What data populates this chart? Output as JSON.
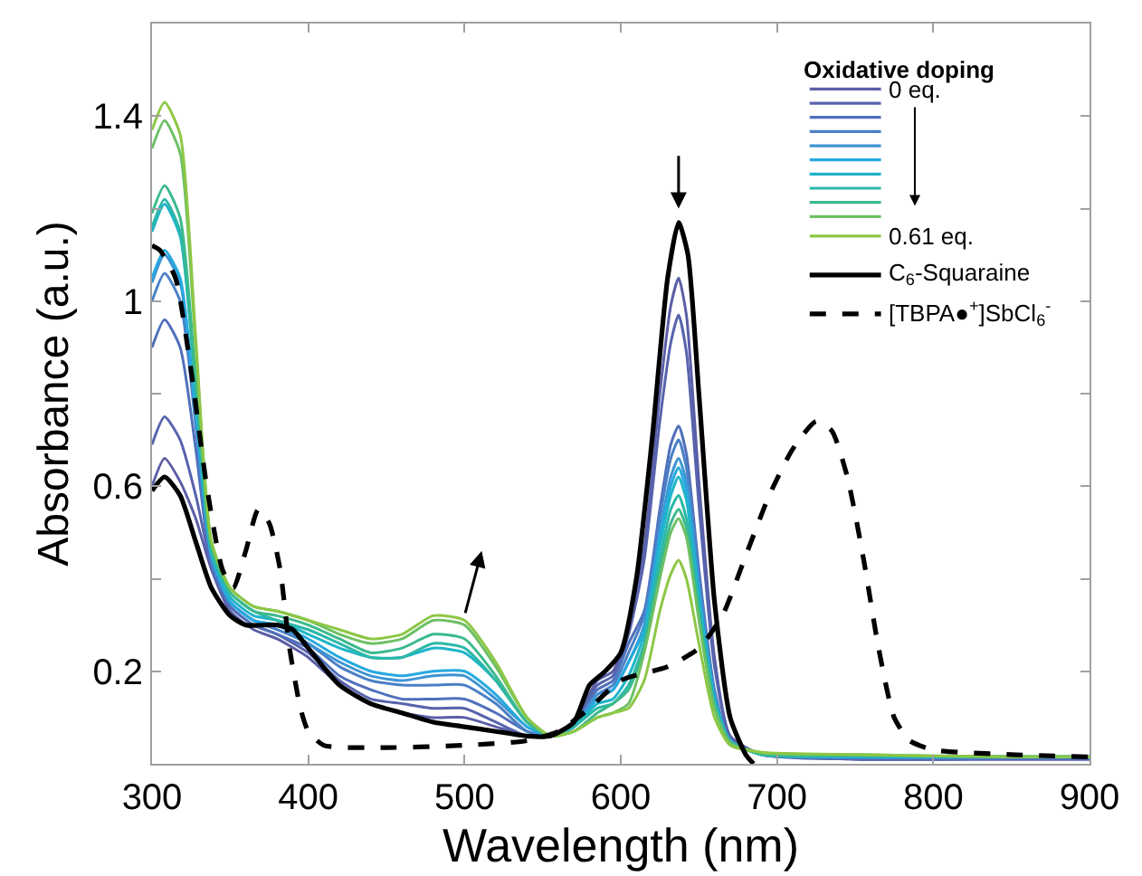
{
  "chart_data": {
    "type": "line",
    "xlabel": "Wavelength (nm)",
    "ylabel": "Absorbance (a.u.)",
    "legend_title": "Oxidative doping",
    "legend": "top right",
    "xlim": [
      300,
      900
    ],
    "xticks": [
      300,
      400,
      500,
      600,
      700,
      800,
      900
    ],
    "ylim": [
      0,
      1.6
    ],
    "yticks": [
      0.2,
      {
        "value": 0.4,
        "label": null
      },
      0.6,
      {
        "value": 0.8,
        "label": null
      },
      1,
      {
        "value": 1.2,
        "label": null
      },
      1.4
    ],
    "x": [
      300,
      308,
      318,
      328,
      338,
      350,
      365,
      380,
      400,
      420,
      440,
      460,
      480,
      500,
      520,
      540,
      555,
      570,
      585,
      595,
      605,
      615,
      625,
      632,
      637,
      642,
      650,
      660,
      670,
      690,
      750,
      850,
      900
    ],
    "series": [
      {
        "name": "0 eq.",
        "color": "#5b5ea6",
        "values": [
          0.6,
          0.66,
          0.61,
          0.53,
          0.42,
          0.33,
          0.29,
          0.27,
          0.23,
          0.17,
          0.13,
          0.11,
          0.1,
          0.1,
          0.08,
          0.06,
          0.06,
          0.09,
          0.18,
          0.2,
          0.3,
          0.47,
          0.8,
          0.99,
          1.05,
          0.97,
          0.61,
          0.23,
          0.06,
          0.02,
          0.01,
          0.01,
          0.01
        ]
      },
      {
        "color": "#5763ad",
        "values": [
          0.69,
          0.75,
          0.7,
          0.58,
          0.43,
          0.34,
          0.3,
          0.28,
          0.24,
          0.18,
          0.14,
          0.13,
          0.12,
          0.12,
          0.09,
          0.06,
          0.06,
          0.09,
          0.17,
          0.19,
          0.28,
          0.44,
          0.74,
          0.91,
          0.97,
          0.89,
          0.56,
          0.21,
          0.06,
          0.02,
          0.01,
          0.01,
          0.01
        ]
      },
      {
        "color": "#5070bb",
        "values": [
          0.9,
          0.96,
          0.9,
          0.68,
          0.43,
          0.34,
          0.3,
          0.28,
          0.25,
          0.19,
          0.16,
          0.14,
          0.14,
          0.14,
          0.11,
          0.07,
          0.06,
          0.09,
          0.16,
          0.18,
          0.26,
          0.33,
          0.55,
          0.69,
          0.73,
          0.67,
          0.42,
          0.16,
          0.05,
          0.02,
          0.012,
          0.012,
          0.012
        ]
      },
      {
        "color": "#4a80c6",
        "values": [
          1.0,
          1.06,
          1.0,
          0.73,
          0.44,
          0.35,
          0.31,
          0.29,
          0.26,
          0.21,
          0.18,
          0.17,
          0.17,
          0.17,
          0.13,
          0.07,
          0.06,
          0.08,
          0.15,
          0.17,
          0.24,
          0.32,
          0.53,
          0.66,
          0.7,
          0.64,
          0.41,
          0.15,
          0.05,
          0.02,
          0.013,
          0.013,
          0.013
        ]
      },
      {
        "color": "#3d94d3",
        "values": [
          1.04,
          1.1,
          1.04,
          0.75,
          0.45,
          0.35,
          0.31,
          0.3,
          0.26,
          0.22,
          0.19,
          0.18,
          0.19,
          0.19,
          0.14,
          0.08,
          0.06,
          0.08,
          0.15,
          0.16,
          0.22,
          0.3,
          0.5,
          0.62,
          0.66,
          0.61,
          0.38,
          0.15,
          0.05,
          0.02,
          0.014,
          0.014,
          0.014
        ]
      },
      {
        "color": "#27a9df",
        "values": [
          1.05,
          1.11,
          1.05,
          0.76,
          0.45,
          0.35,
          0.31,
          0.3,
          0.27,
          0.23,
          0.2,
          0.19,
          0.2,
          0.2,
          0.15,
          0.08,
          0.06,
          0.08,
          0.14,
          0.16,
          0.22,
          0.29,
          0.49,
          0.6,
          0.64,
          0.59,
          0.37,
          0.14,
          0.05,
          0.02,
          0.015,
          0.015,
          0.015
        ]
      },
      {
        "color": "#1fb4c9",
        "values": [
          1.15,
          1.21,
          1.14,
          0.81,
          0.46,
          0.36,
          0.32,
          0.31,
          0.28,
          0.25,
          0.23,
          0.23,
          0.25,
          0.24,
          0.18,
          0.09,
          0.06,
          0.08,
          0.13,
          0.14,
          0.19,
          0.28,
          0.47,
          0.58,
          0.62,
          0.57,
          0.36,
          0.14,
          0.05,
          0.02,
          0.016,
          0.015,
          0.015
        ]
      },
      {
        "color": "#2bb7a8",
        "values": [
          1.16,
          1.22,
          1.15,
          0.81,
          0.46,
          0.37,
          0.33,
          0.31,
          0.29,
          0.26,
          0.23,
          0.23,
          0.26,
          0.25,
          0.18,
          0.09,
          0.06,
          0.08,
          0.12,
          0.13,
          0.17,
          0.26,
          0.44,
          0.55,
          0.58,
          0.53,
          0.34,
          0.13,
          0.05,
          0.02,
          0.017,
          0.015,
          0.015
        ]
      },
      {
        "color": "#3bba8c",
        "values": [
          1.19,
          1.25,
          1.18,
          0.83,
          0.47,
          0.37,
          0.33,
          0.32,
          0.3,
          0.27,
          0.24,
          0.25,
          0.28,
          0.27,
          0.19,
          0.09,
          0.06,
          0.07,
          0.11,
          0.13,
          0.16,
          0.25,
          0.42,
          0.52,
          0.55,
          0.51,
          0.32,
          0.12,
          0.045,
          0.022,
          0.018,
          0.015,
          0.015
        ]
      },
      {
        "color": "#6dc064",
        "values": [
          1.33,
          1.39,
          1.32,
          0.9,
          0.48,
          0.38,
          0.34,
          0.33,
          0.31,
          0.28,
          0.26,
          0.27,
          0.31,
          0.3,
          0.21,
          0.1,
          0.06,
          0.07,
          0.1,
          0.11,
          0.13,
          0.24,
          0.4,
          0.5,
          0.53,
          0.49,
          0.31,
          0.12,
          0.045,
          0.024,
          0.02,
          0.015,
          0.015
        ]
      },
      {
        "name": "0.61 eq.",
        "color": "#8dc745",
        "values": [
          1.37,
          1.43,
          1.36,
          0.92,
          0.48,
          0.38,
          0.34,
          0.33,
          0.31,
          0.29,
          0.27,
          0.28,
          0.32,
          0.31,
          0.22,
          0.1,
          0.06,
          0.07,
          0.1,
          0.11,
          0.12,
          0.18,
          0.33,
          0.41,
          0.44,
          0.4,
          0.26,
          0.1,
          0.04,
          0.025,
          0.02,
          0.015,
          0.015
        ]
      },
      {
        "name": "C$_{6}$-Squaraine",
        "color": "#000000",
        "line_style": "solid",
        "x": [
          300,
          308,
          318,
          328,
          338,
          350,
          360,
          380,
          390,
          400,
          420,
          440,
          460,
          480,
          500,
          520,
          540,
          555,
          570,
          580,
          590,
          600,
          610,
          620,
          630,
          637,
          643,
          650,
          660,
          670,
          680,
          685
        ],
        "values": [
          0.59,
          0.62,
          0.58,
          0.48,
          0.38,
          0.32,
          0.3,
          0.3,
          0.29,
          0.25,
          0.17,
          0.13,
          0.11,
          0.09,
          0.08,
          0.07,
          0.06,
          0.06,
          0.09,
          0.17,
          0.2,
          0.24,
          0.4,
          0.7,
          1.05,
          1.17,
          1.1,
          0.8,
          0.35,
          0.1,
          0.02,
          0.0
        ]
      },
      {
        "name": "[TBPA●$^{+}$]SbCl$_{6}$$^{-}$",
        "color": "#000000",
        "line_style": "dashed",
        "x": [
          300,
          305,
          315,
          325,
          335,
          345,
          352,
          360,
          368,
          375,
          382,
          388,
          395,
          400,
          410,
          450,
          500,
          540,
          560,
          580,
          600,
          630,
          650,
          665,
          680,
          695,
          710,
          725,
          735,
          745,
          755,
          765,
          775,
          785,
          800,
          850,
          900
        ],
        "values": [
          1.12,
          1.11,
          1.05,
          0.85,
          0.6,
          0.42,
          0.38,
          0.46,
          0.55,
          0.52,
          0.42,
          0.25,
          0.12,
          0.07,
          0.04,
          0.035,
          0.04,
          0.05,
          0.07,
          0.12,
          0.18,
          0.21,
          0.25,
          0.32,
          0.45,
          0.58,
          0.68,
          0.74,
          0.72,
          0.62,
          0.45,
          0.25,
          0.1,
          0.05,
          0.03,
          0.02,
          0.015
        ]
      }
    ]
  }
}
